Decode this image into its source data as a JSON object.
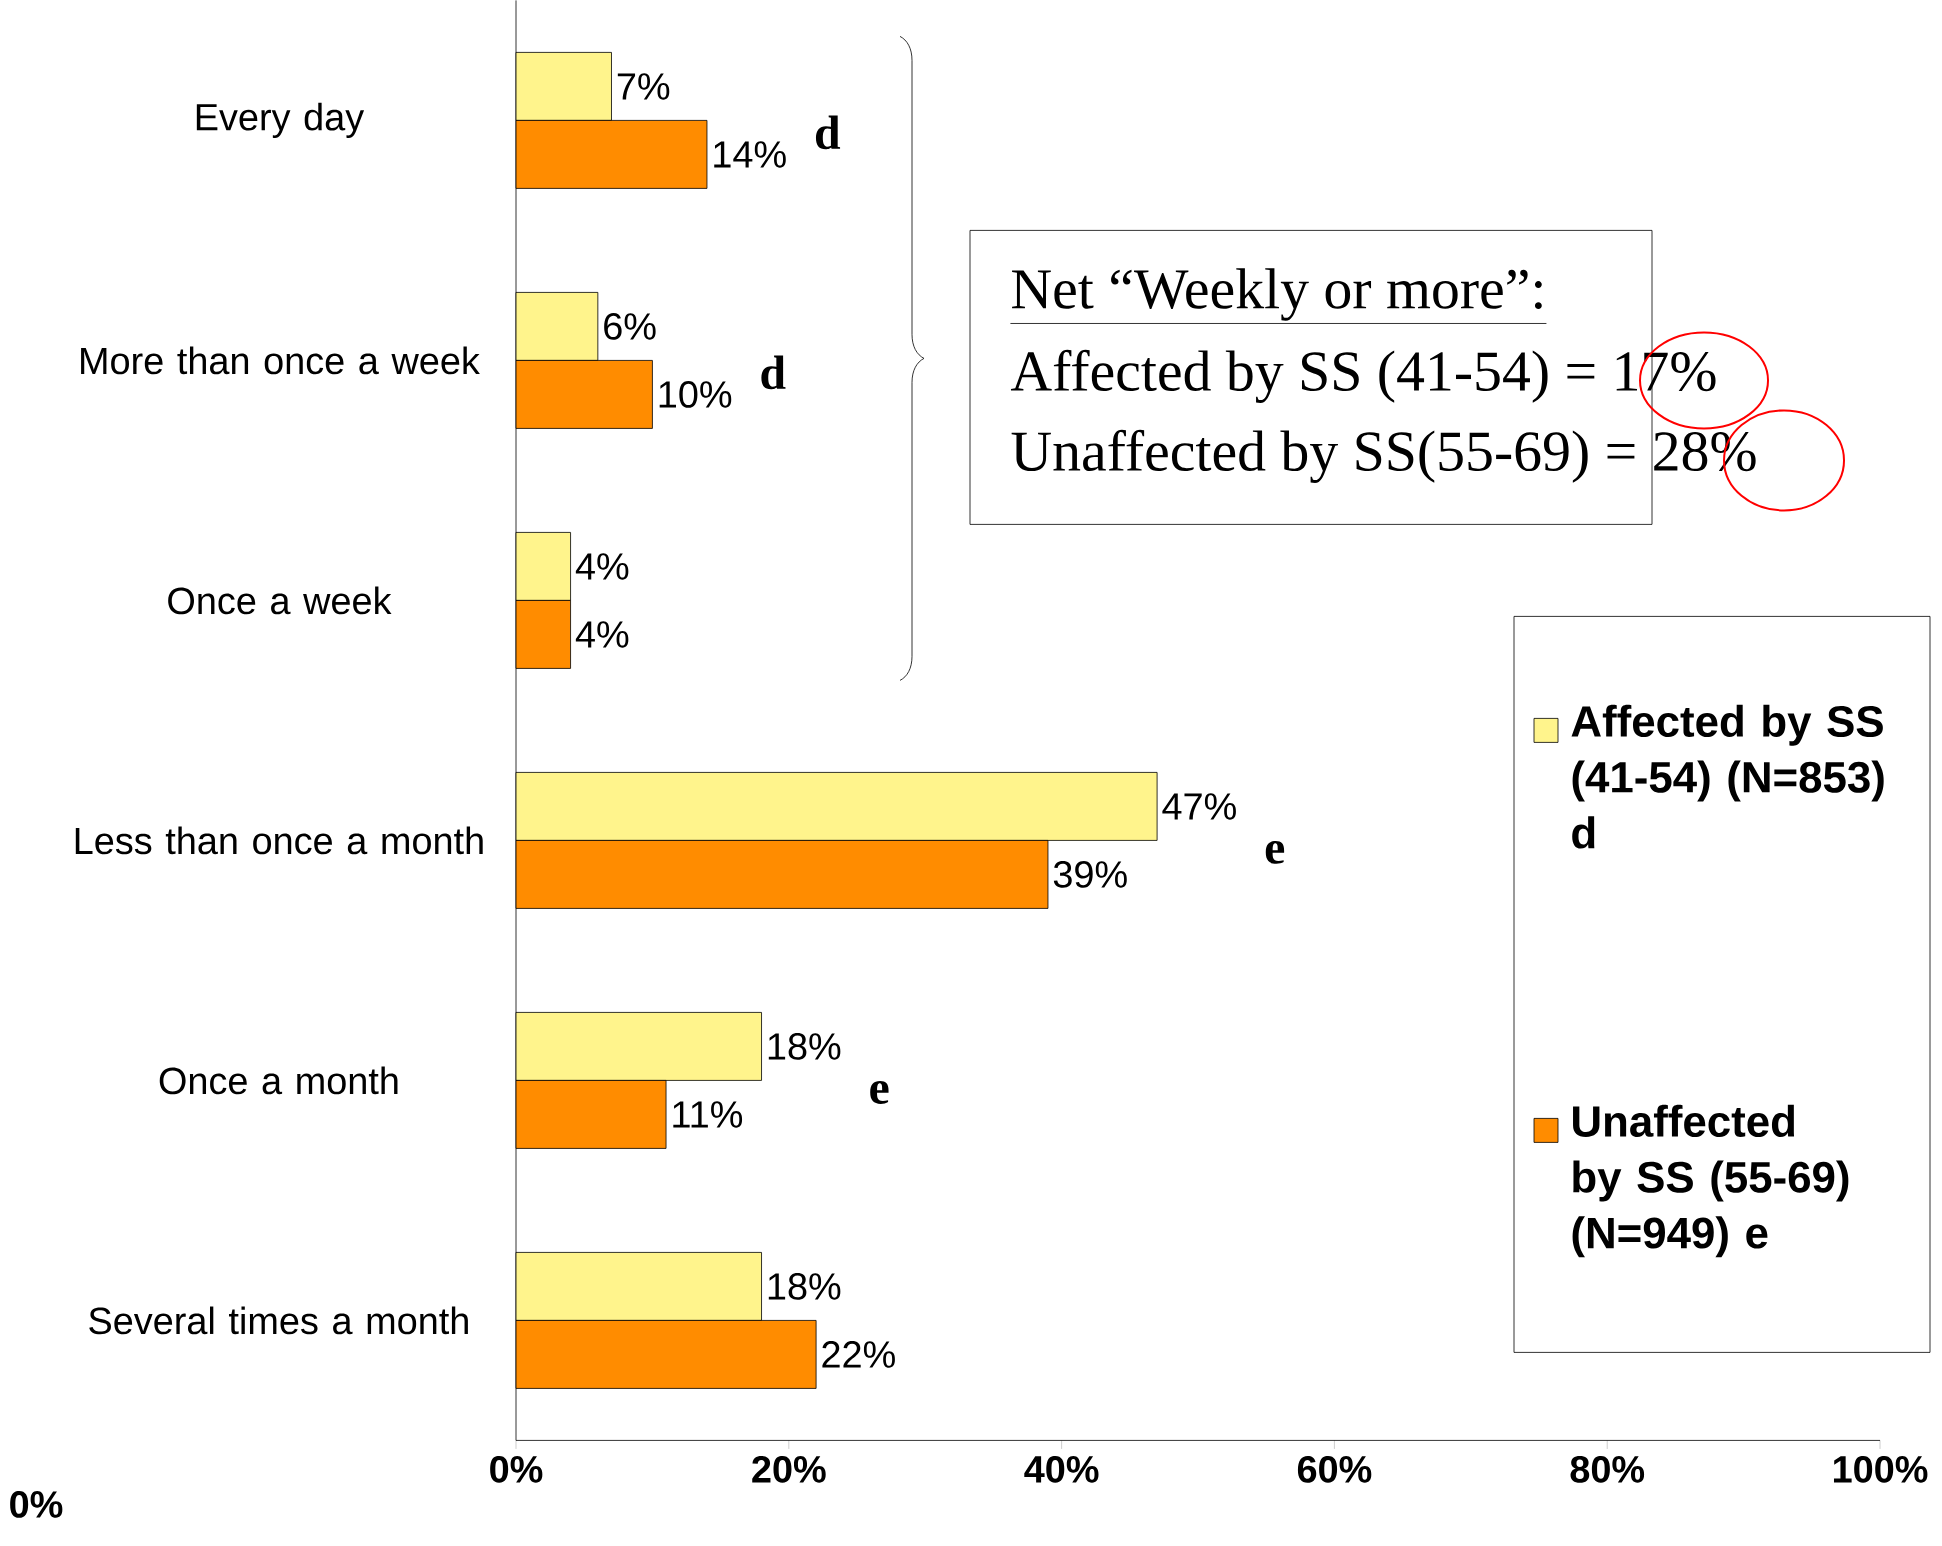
{
  "chart_data": {
    "type": "bar",
    "orientation": "horizontal",
    "categories": [
      "Every day",
      "More than once a week",
      "Once a week",
      "Less than once a month",
      "Once a month",
      "Several times a month"
    ],
    "series": [
      {
        "name": "Affected by SS (41-54) (N=853) d",
        "color": "#fff48c",
        "values": [
          7,
          6,
          4,
          47,
          18,
          18
        ],
        "value_labels": [
          "7%",
          "6%",
          "4%",
          "47%",
          "18%",
          "18%"
        ]
      },
      {
        "name": "Unaffected by SS (55-69) (N=949) e",
        "color": "#ff8c00",
        "values": [
          14,
          10,
          4,
          39,
          11,
          22
        ],
        "value_labels": [
          "14%",
          "10%",
          "4%",
          "39%",
          "11%",
          "22%"
        ]
      }
    ],
    "xlim": [
      0,
      100
    ],
    "xticks": [
      {
        "value": 0,
        "label": "0%"
      },
      {
        "value": 20,
        "label": "20%"
      },
      {
        "value": 40,
        "label": "40%"
      },
      {
        "value": 60,
        "label": "60%"
      },
      {
        "value": 80,
        "label": "80%"
      },
      {
        "value": 100,
        "label": "100%"
      }
    ],
    "legend": "right",
    "annotations": [
      {
        "text": "d",
        "x": 14,
        "y": "Every day"
      },
      {
        "text": "d",
        "x": 10,
        "y": "More than once a week"
      },
      {
        "text": "e",
        "x": 47,
        "y": "Less than once a month"
      },
      {
        "text": "e",
        "x": 18,
        "y": "Once a month"
      },
      "Net “Weekly or more”:",
      "Affected by SS (41-54) = 17%",
      "Unaffected by SS(55-69) = 28%",
      "0%"
    ]
  }
}
